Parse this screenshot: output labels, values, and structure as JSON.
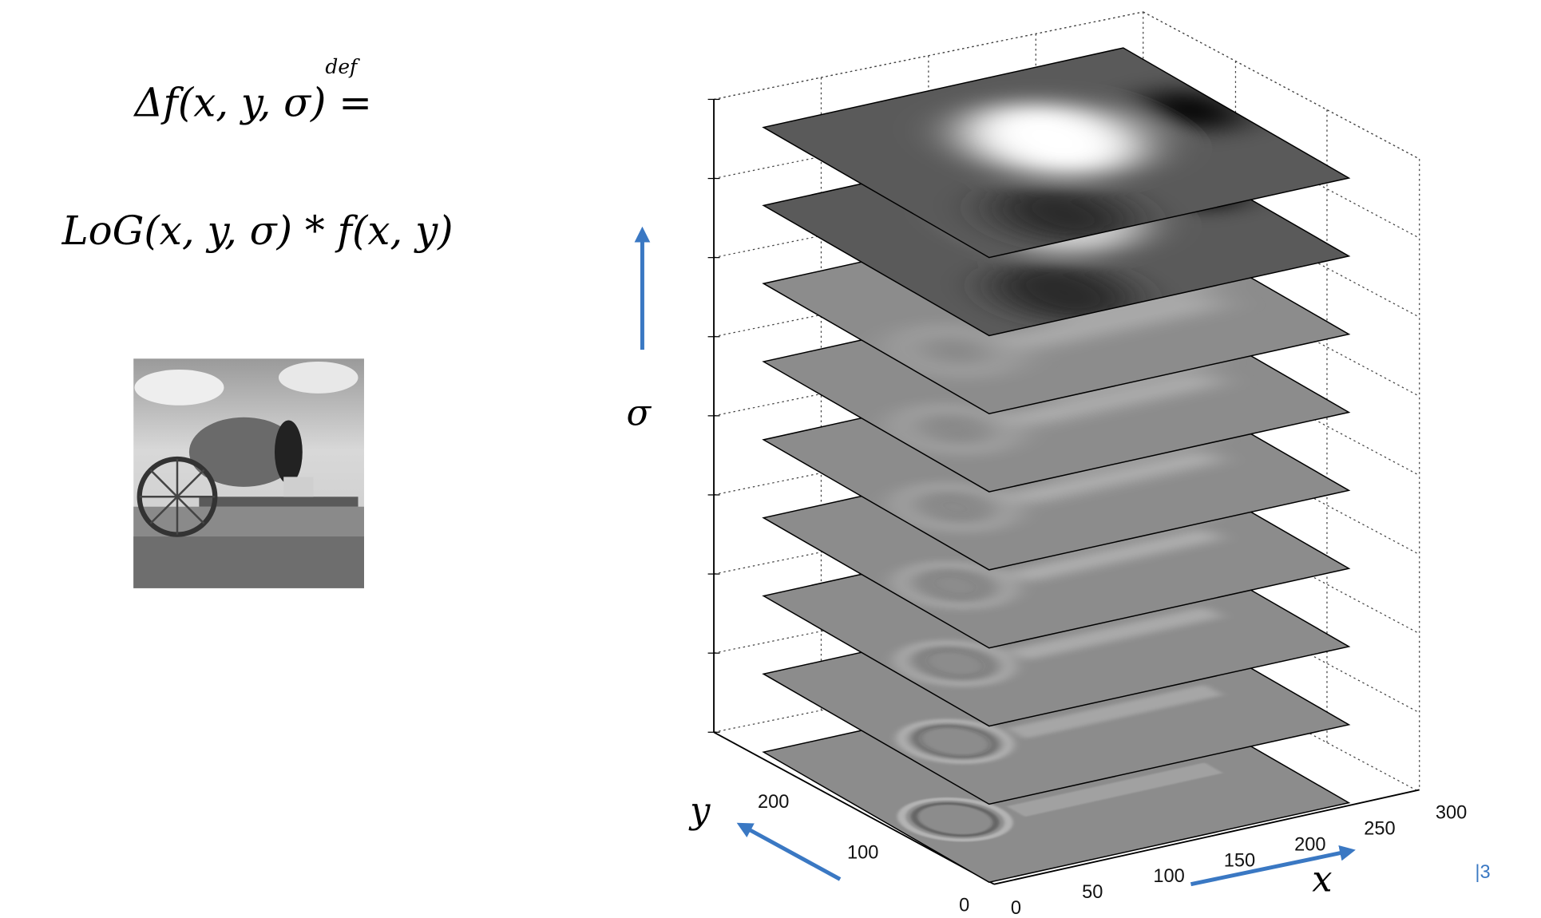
{
  "formula": {
    "lhs": "Δf(x, y, σ) =",
    "def_label": "def",
    "rhs": "LoG(x, y, σ) * f(x, y)"
  },
  "photo": {
    "icon": "wagon-barrel-photo"
  },
  "figure": {
    "sigma_label": "σ",
    "x_label": "x",
    "y_label": "y",
    "x_ticks": [
      "0",
      "50",
      "100",
      "150",
      "200",
      "250",
      "300"
    ],
    "y_ticks": [
      "0",
      "100",
      "200"
    ],
    "scale_levels": 9
  },
  "colors": {
    "arrow": "#3a78c3",
    "page_number": "#3a78c3"
  },
  "page_number": "3"
}
